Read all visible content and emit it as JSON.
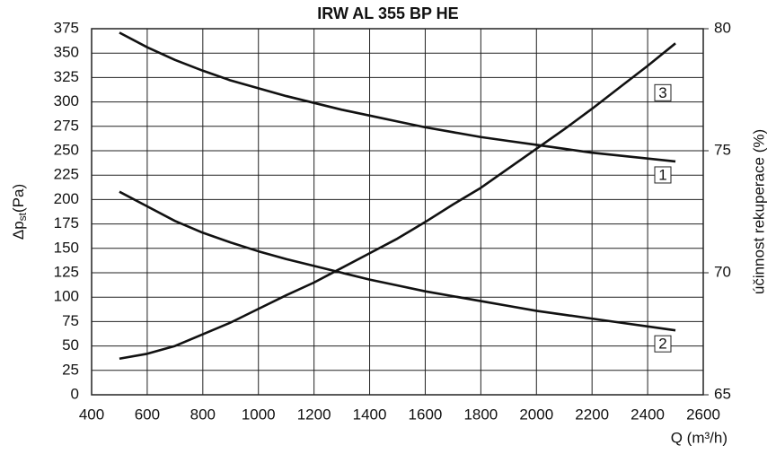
{
  "chart_data": {
    "type": "line",
    "title": "IRW AL 355 BP HE",
    "x_label": "Q (m³/h)",
    "y_label_parts": [
      "Δp",
      "st",
      "(Pa)"
    ],
    "y2_label": "účinnost rekuperace (%)",
    "x": [
      500,
      600,
      700,
      800,
      900,
      1000,
      1100,
      1200,
      1300,
      1400,
      1500,
      1600,
      1700,
      1800,
      1900,
      2000,
      2100,
      2200,
      2300,
      2400,
      2500
    ],
    "series": [
      {
        "name": "1",
        "color": "#111111",
        "axis": "y2",
        "values": [
          79.84,
          79.24,
          78.72,
          78.28,
          77.88,
          77.56,
          77.24,
          76.96,
          76.68,
          76.44,
          76.2,
          75.96,
          75.76,
          75.56,
          75.4,
          75.24,
          75.08,
          74.92,
          74.8,
          74.68,
          74.56
        ]
      },
      {
        "name": "2",
        "color": "#111111",
        "axis": "y2",
        "values": [
          73.32,
          72.72,
          72.12,
          71.64,
          71.24,
          70.88,
          70.56,
          70.28,
          70.0,
          69.72,
          69.48,
          69.24,
          69.04,
          68.84,
          68.64,
          68.44,
          68.28,
          68.12,
          67.96,
          67.8,
          67.64
        ]
      },
      {
        "name": "3",
        "color": "#111111",
        "values": [
          37,
          42,
          50,
          62,
          74,
          88,
          102,
          115,
          130,
          145,
          160,
          177,
          195,
          212,
          232,
          252,
          272,
          293,
          315,
          337,
          360
        ]
      }
    ],
    "xlim": [
      400,
      2600
    ],
    "xticks": [
      400,
      600,
      800,
      1000,
      1200,
      1400,
      1600,
      1800,
      2000,
      2200,
      2400,
      2600
    ],
    "ylim": [
      0,
      375
    ],
    "yticks": [
      0,
      25,
      50,
      75,
      100,
      125,
      150,
      175,
      200,
      225,
      250,
      275,
      300,
      325,
      350,
      375
    ],
    "y2lim": [
      65,
      80
    ],
    "y2ticks": [
      65,
      70,
      75,
      80
    ],
    "grid": true
  }
}
